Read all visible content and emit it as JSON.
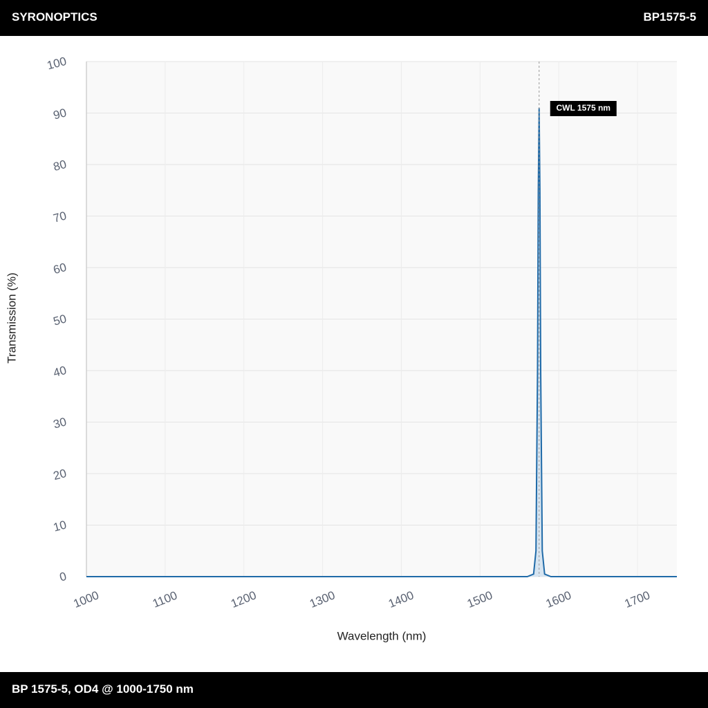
{
  "header": {
    "brand": "SYRONOPTICS",
    "part": "BP1575-5"
  },
  "footer": {
    "caption": "BP 1575-5, OD4 @ 1000-1750 nm"
  },
  "chart_data": {
    "type": "line",
    "x_label": "Wavelength (nm)",
    "y_label": "Transmission (%)",
    "x": [
      1000,
      1560,
      1568,
      1571,
      1573,
      1574,
      1575,
      1576,
      1577,
      1579,
      1582,
      1590,
      1750
    ],
    "values": [
      0,
      0,
      0.5,
      5,
      40,
      75,
      91,
      75,
      40,
      5,
      0.5,
      0,
      0
    ],
    "color": "#1f6aa8",
    "fill": "#d6e4f0",
    "xlim": [
      1000,
      1750
    ],
    "xticks": [
      1000,
      1100,
      1200,
      1300,
      1400,
      1500,
      1600,
      1700
    ],
    "ylim": [
      0,
      100
    ],
    "yticks": [
      0,
      10,
      20,
      30,
      40,
      50,
      60,
      70,
      80,
      90,
      100
    ],
    "grid": true,
    "annotation": {
      "text": "CWL 1575 nm",
      "x": 1575
    }
  }
}
